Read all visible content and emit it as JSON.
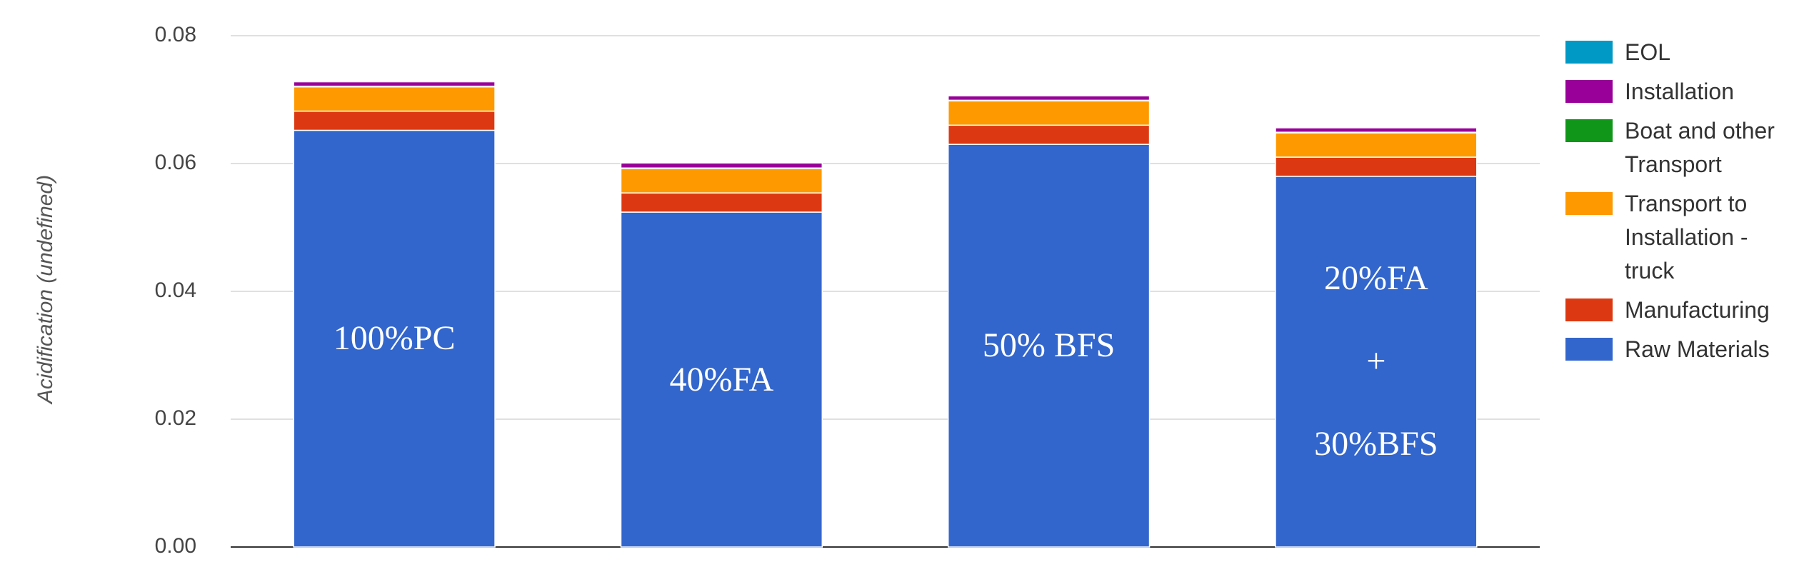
{
  "chart_data": {
    "type": "stacked_bar",
    "y_label": "Acidification (undefined)",
    "categories": [
      "100%PC",
      "40%FA",
      "50% BFS",
      "20%FA\n+\n30%BFS"
    ],
    "series": [
      {
        "name": "Raw Materials",
        "color": "#3366cc",
        "values": [
          0.0652,
          0.0524,
          0.063,
          0.058
        ]
      },
      {
        "name": "Manufacturing",
        "color": "#dc3912",
        "values": [
          0.003,
          0.003,
          0.003,
          0.003
        ]
      },
      {
        "name": "Transport to Installation - truck",
        "color": "#ff9900",
        "values": [
          0.0038,
          0.0038,
          0.0038,
          0.0038
        ]
      },
      {
        "name": "Boat and other Transport",
        "color": "#109618",
        "values": [
          0.0001,
          0.0001,
          0.0001,
          0.0001
        ]
      },
      {
        "name": "Installation",
        "color": "#990099",
        "values": [
          0.0007,
          0.0008,
          0.0007,
          0.0007
        ]
      },
      {
        "name": "EOL",
        "color": "#0099c6",
        "values": [
          0.0001,
          0.0001,
          0.0001,
          0.0001
        ]
      }
    ],
    "ylim": [
      0,
      0.08
    ],
    "yticks": [
      {
        "value": 0,
        "label": "0.00"
      },
      0.02,
      0.04,
      0.06,
      0.08
    ],
    "grid": true,
    "legend": "right"
  }
}
